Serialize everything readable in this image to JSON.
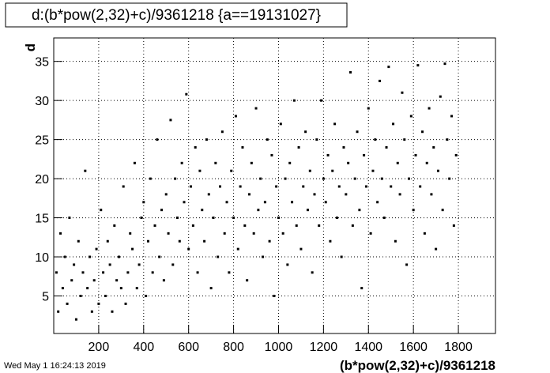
{
  "chart_data": {
    "type": "scatter",
    "title": "d:(b*pow(2,32)+c)/9361218 {a==19131027}",
    "x_label": "(b*pow(2,32)+c)/9361218",
    "y_label": "d",
    "timestamp": "Wed May  1 16:24:13 2019",
    "color": "#000000",
    "grid": true,
    "xlim": [
      0,
      1965
    ],
    "ylim": [
      0.2,
      38
    ],
    "xticks": [
      200,
      400,
      600,
      800,
      1000,
      1200,
      1400,
      1600,
      1800
    ],
    "yticks": [
      5,
      10,
      15,
      20,
      25,
      30,
      35
    ],
    "x": [
      12,
      20,
      30,
      40,
      50,
      60,
      70,
      80,
      90,
      100,
      110,
      120,
      130,
      140,
      150,
      160,
      170,
      180,
      190,
      200,
      210,
      220,
      230,
      240,
      250,
      260,
      270,
      280,
      290,
      300,
      310,
      320,
      330,
      340,
      350,
      360,
      370,
      380,
      390,
      400,
      410,
      420,
      430,
      440,
      450,
      460,
      470,
      480,
      490,
      500,
      510,
      520,
      530,
      540,
      550,
      560,
      570,
      580,
      590,
      600,
      610,
      620,
      630,
      640,
      650,
      660,
      670,
      680,
      690,
      700,
      710,
      720,
      730,
      740,
      750,
      760,
      770,
      780,
      790,
      800,
      810,
      820,
      830,
      840,
      850,
      860,
      870,
      880,
      890,
      900,
      910,
      920,
      930,
      940,
      950,
      960,
      970,
      980,
      990,
      1000,
      1010,
      1020,
      1030,
      1040,
      1050,
      1060,
      1070,
      1080,
      1090,
      1100,
      1110,
      1120,
      1130,
      1140,
      1150,
      1160,
      1170,
      1180,
      1190,
      1200,
      1210,
      1220,
      1230,
      1240,
      1250,
      1260,
      1270,
      1280,
      1290,
      1300,
      1310,
      1320,
      1330,
      1340,
      1350,
      1360,
      1370,
      1380,
      1390,
      1400,
      1410,
      1420,
      1430,
      1440,
      1450,
      1460,
      1470,
      1480,
      1490,
      1500,
      1510,
      1520,
      1530,
      1540,
      1550,
      1560,
      1570,
      1580,
      1590,
      1600,
      1610,
      1620,
      1630,
      1640,
      1650,
      1660,
      1670,
      1680,
      1690,
      1700,
      1710,
      1720,
      1730,
      1740,
      1750,
      1760,
      1770,
      1780,
      1790
    ],
    "values": [
      8,
      3,
      13,
      6,
      10,
      4,
      15,
      7,
      9,
      2,
      12,
      5,
      8,
      21,
      6,
      10,
      3,
      7,
      11,
      4,
      16,
      8,
      5,
      12,
      9,
      3,
      14,
      7,
      10,
      6,
      19,
      4,
      8,
      13,
      11,
      22,
      6,
      9,
      15,
      17,
      5,
      12,
      20,
      8,
      14,
      25,
      10,
      16,
      7,
      18,
      13,
      27.5,
      9,
      20,
      15,
      12,
      22,
      17,
      30.8,
      11,
      19,
      14,
      24,
      8,
      21,
      16,
      12,
      25,
      18,
      6,
      15,
      22,
      10,
      19,
      26,
      13,
      17,
      8,
      21,
      15,
      28,
      11,
      19,
      24,
      14,
      7,
      18,
      22,
      13,
      29,
      16,
      20,
      10,
      17,
      25,
      12,
      23,
      5,
      19,
      15,
      27,
      13,
      20,
      9,
      22,
      17,
      30,
      14,
      24,
      11,
      19,
      26,
      16,
      21,
      8,
      18,
      25,
      14,
      30,
      20,
      17,
      23,
      12,
      21,
      27,
      15,
      19,
      10,
      24,
      18,
      22,
      33.6,
      14,
      20,
      26,
      16,
      6,
      23,
      19,
      29,
      13,
      21,
      25,
      17,
      32.5,
      20,
      15,
      24,
      34.3,
      19,
      27,
      12,
      22,
      18,
      31,
      25,
      9,
      20,
      28,
      16,
      23,
      34.5,
      19,
      26,
      13,
      22,
      29,
      18,
      24,
      11,
      21,
      30.5,
      16,
      34.7,
      25,
      20,
      28,
      14,
      23
    ]
  }
}
